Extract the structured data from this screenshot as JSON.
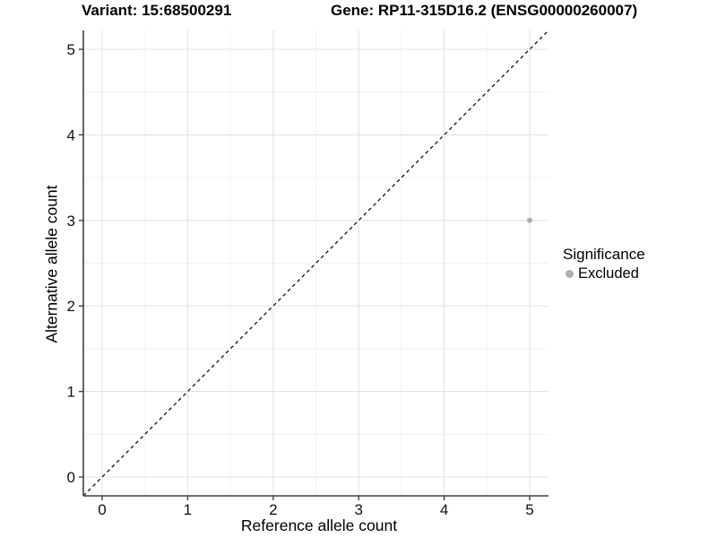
{
  "chart_data": {
    "type": "scatter",
    "title": "Variant: 15:68500291",
    "secondary_title": "Gene: RP11-315D16.2 (ENSG00000260007)",
    "xlabel": "Reference allele count",
    "ylabel": "Alternative allele count",
    "xlim": [
      -0.22,
      5.22
    ],
    "ylim": [
      -0.22,
      5.22
    ],
    "xticks": [
      0,
      1,
      2,
      3,
      4,
      5
    ],
    "yticks": [
      0,
      1,
      2,
      3,
      4,
      5
    ],
    "grid": "major+minor",
    "legend": {
      "title": "Significance",
      "position": "right",
      "entries": [
        {
          "label": "Excluded",
          "color": "#b0b0b0",
          "marker": "circle"
        }
      ]
    },
    "series": [
      {
        "name": "Excluded",
        "color": "#b0b0b0",
        "points": [
          {
            "x": 5,
            "y": 3
          }
        ]
      }
    ],
    "reference_line": {
      "type": "identity",
      "slope": 1,
      "intercept": 0,
      "style": "dashed",
      "color": "#000000"
    },
    "style": {
      "background": "#ffffff",
      "grid_major_color": "#e3e3e3",
      "grid_minor_color": "#f0f0f0",
      "axis_color": "#404040",
      "tick_label_color": "#111111",
      "text_color": "#000000"
    }
  }
}
